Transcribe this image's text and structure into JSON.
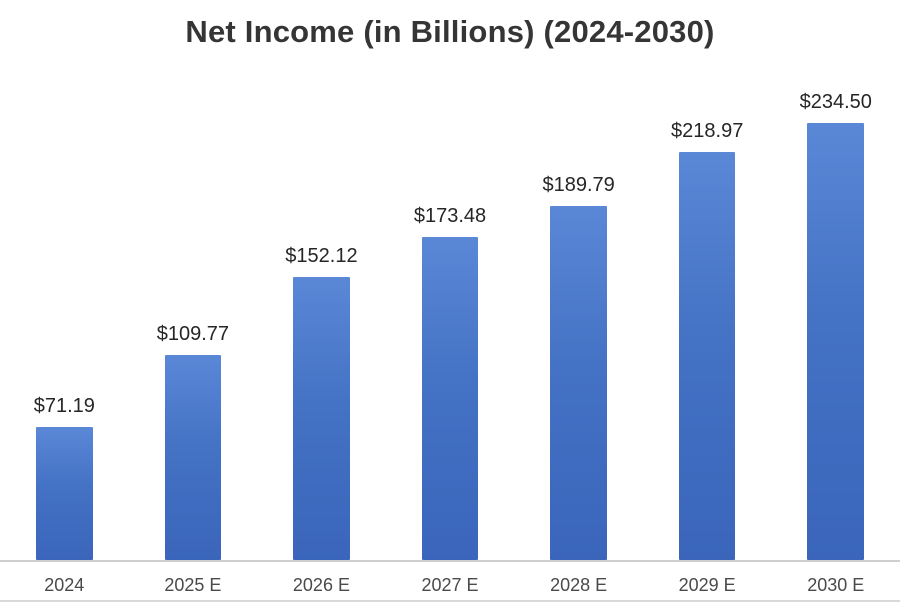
{
  "chart_data": {
    "type": "bar",
    "title": "Net Income (in Billions) (2024-2030)",
    "categories": [
      "2024",
      "2025 E",
      "2026 E",
      "2027 E",
      "2028 E",
      "2029 E",
      "2030 E"
    ],
    "values": [
      71.19,
      109.77,
      152.12,
      173.48,
      189.79,
      218.97,
      234.5
    ],
    "value_labels": [
      "$71.19",
      "$109.77",
      "$152.12",
      "$173.48",
      "$189.79",
      "$218.97",
      "$234.50"
    ],
    "xlabel": "",
    "ylabel": "",
    "ylim": [
      0,
      250
    ],
    "grid": false,
    "legend": "none",
    "bar_color": "#4472c4"
  }
}
